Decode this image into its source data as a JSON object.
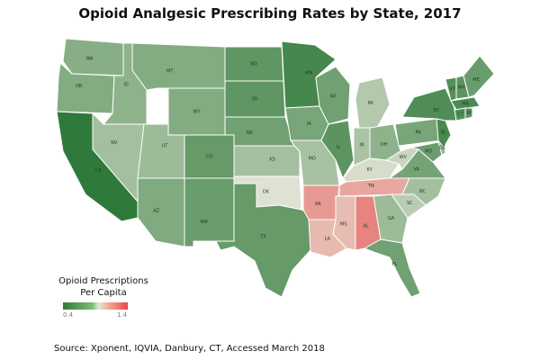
{
  "title": "Opioid Analgesic Prescribing Rates by State, 2017",
  "legend": {
    "title_line1": "Opioid Prescriptions",
    "title_line2": "Per Capita",
    "min": "0.4",
    "max": "1.4"
  },
  "source": "Source:  Xponent, IQVIA, Danbury, CT, Accessed March 2018",
  "colors": {
    "low": "#2f7a3a",
    "mid": "#e6e6d8",
    "high": "#e8484a"
  },
  "states": [
    {
      "abbr": "WA",
      "rate": 0.64
    },
    {
      "abbr": "OR",
      "rate": 0.63
    },
    {
      "abbr": "CA",
      "rate": 0.4
    },
    {
      "abbr": "ID",
      "rate": 0.66
    },
    {
      "abbr": "NV",
      "rate": 0.72
    },
    {
      "abbr": "UT",
      "rate": 0.7
    },
    {
      "abbr": "AZ",
      "rate": 0.62
    },
    {
      "abbr": "MT",
      "rate": 0.63
    },
    {
      "abbr": "WY",
      "rate": 0.63
    },
    {
      "abbr": "CO",
      "rate": 0.55
    },
    {
      "abbr": "NM",
      "rate": 0.56
    },
    {
      "abbr": "ND",
      "rate": 0.53
    },
    {
      "abbr": "SD",
      "rate": 0.53
    },
    {
      "abbr": "NE",
      "rate": 0.58
    },
    {
      "abbr": "KS",
      "rate": 0.72
    },
    {
      "abbr": "OK",
      "rate": 0.88
    },
    {
      "abbr": "TX",
      "rate": 0.55
    },
    {
      "abbr": "MN",
      "rate": 0.46
    },
    {
      "abbr": "IA",
      "rate": 0.6
    },
    {
      "abbr": "MO",
      "rate": 0.73
    },
    {
      "abbr": "AR",
      "rate": 1.14
    },
    {
      "abbr": "LA",
      "rate": 1.04
    },
    {
      "abbr": "WI",
      "rate": 0.58
    },
    {
      "abbr": "IL",
      "rate": 0.52
    },
    {
      "abbr": "MI",
      "rate": 0.76
    },
    {
      "abbr": "IN",
      "rate": 0.74
    },
    {
      "abbr": "OH",
      "rate": 0.66
    },
    {
      "abbr": "KY",
      "rate": 0.86
    },
    {
      "abbr": "TN",
      "rate": 1.1
    },
    {
      "abbr": "MS",
      "rate": 1.03
    },
    {
      "abbr": "AL",
      "rate": 1.21
    },
    {
      "abbr": "GA",
      "rate": 0.7
    },
    {
      "abbr": "FL",
      "rate": 0.58
    },
    {
      "abbr": "SC",
      "rate": 0.78
    },
    {
      "abbr": "NC",
      "rate": 0.72
    },
    {
      "abbr": "VA",
      "rate": 0.59
    },
    {
      "abbr": "WV",
      "rate": 0.82
    },
    {
      "abbr": "PA",
      "rate": 0.6
    },
    {
      "abbr": "NY",
      "rate": 0.49
    },
    {
      "abbr": "ME",
      "rate": 0.56
    },
    {
      "abbr": "VT",
      "rate": 0.5
    },
    {
      "abbr": "NH",
      "rate": 0.52
    },
    {
      "abbr": "MA",
      "rate": 0.48
    },
    {
      "abbr": "CT",
      "rate": 0.5
    },
    {
      "abbr": "RI",
      "rate": 0.52
    },
    {
      "abbr": "NJ",
      "rate": 0.47
    },
    {
      "abbr": "DE",
      "rate": 0.68
    },
    {
      "abbr": "MD",
      "rate": 0.56
    }
  ]
}
